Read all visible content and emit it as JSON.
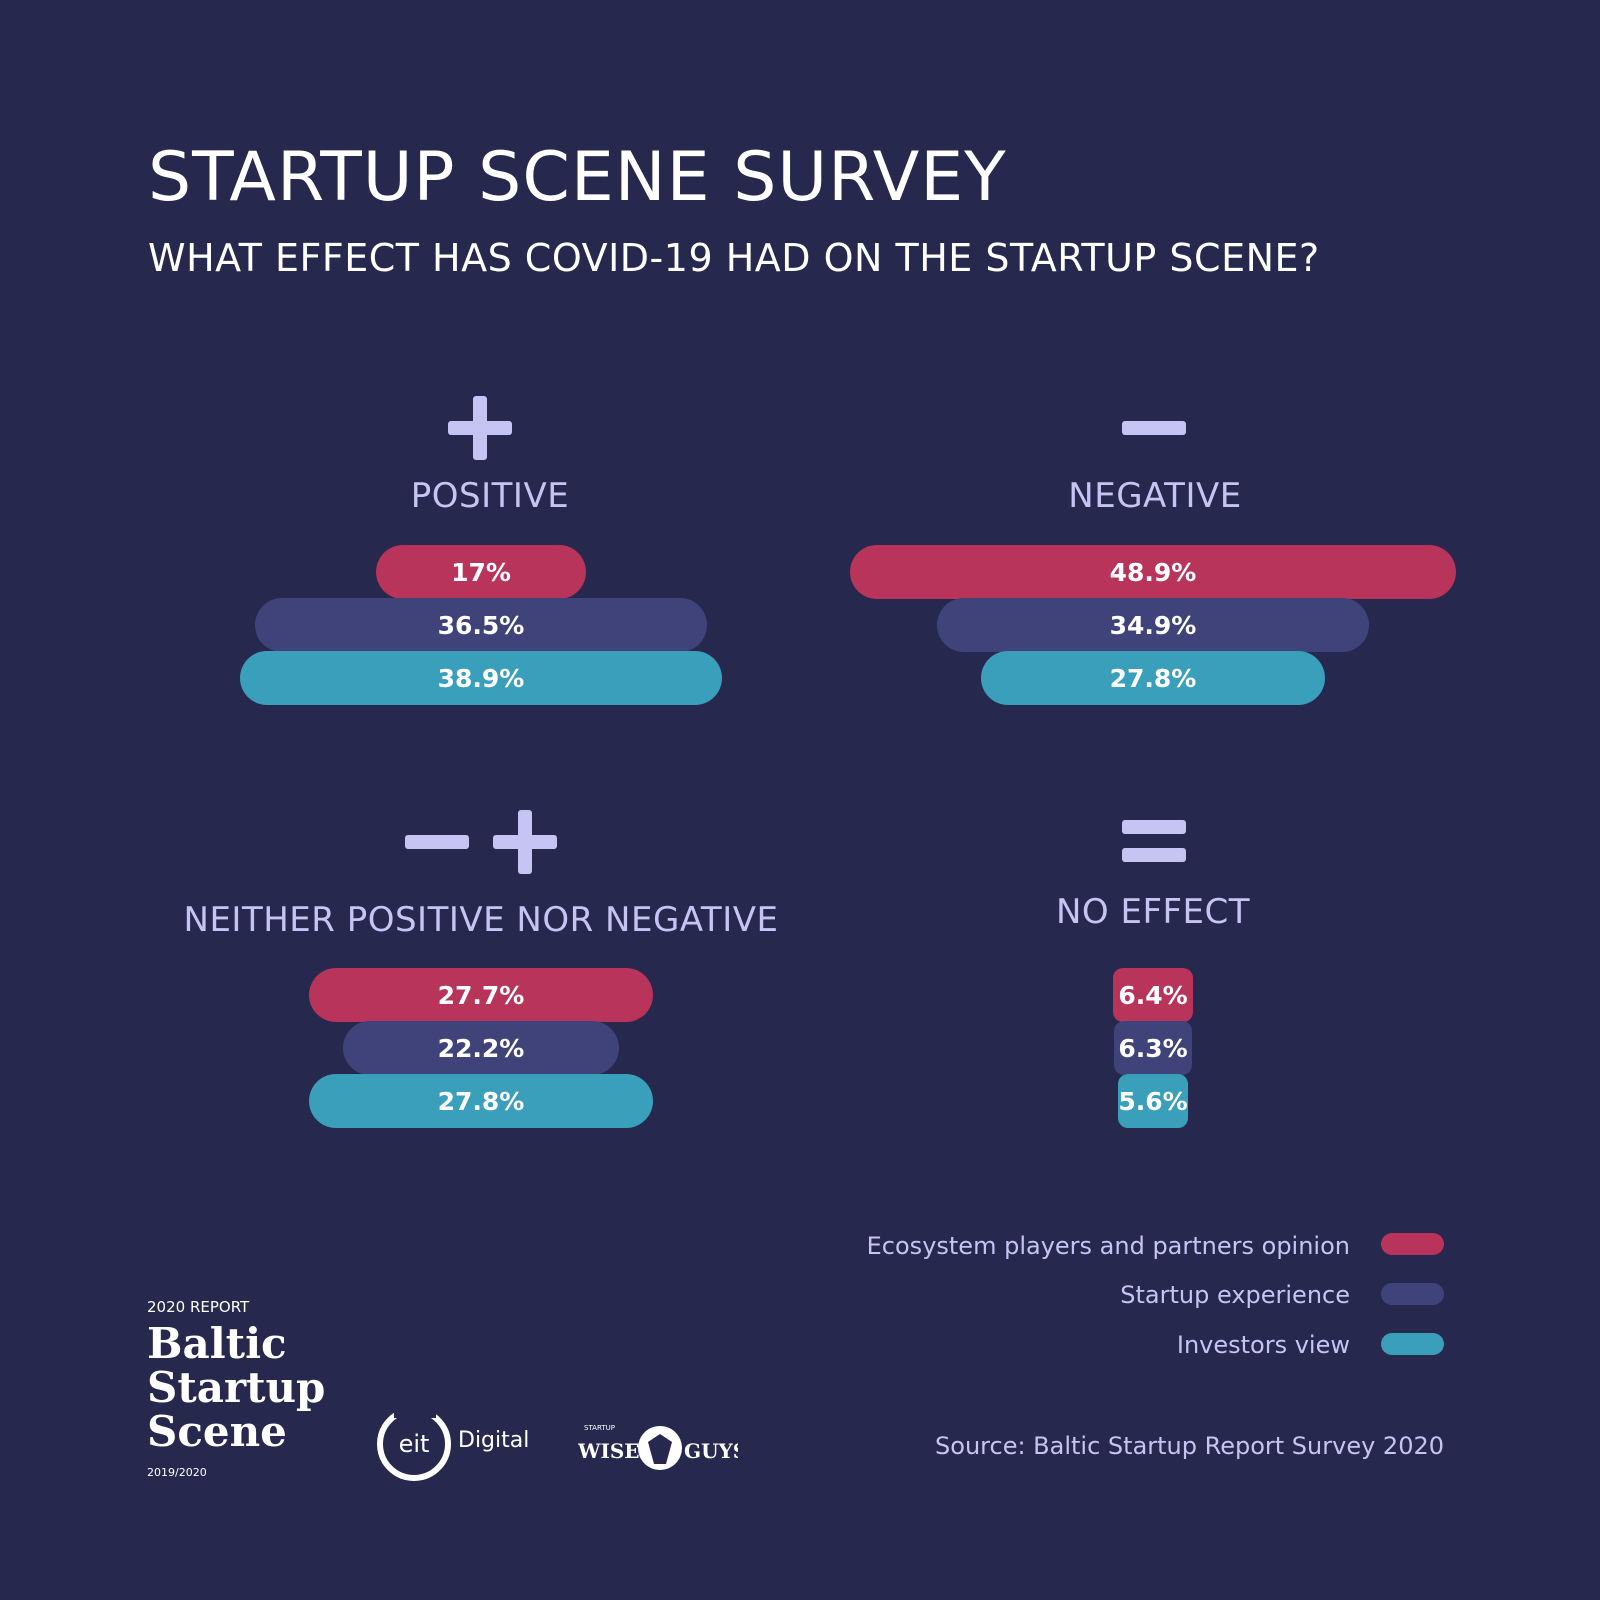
{
  "title": "STARTUP SCENE SURVEY",
  "subtitle": "WHAT EFFECT HAS COVID-19 HAD ON THE STARTUP SCENE?",
  "colors": {
    "background": "#26284e",
    "ecosystem": "#b8345a",
    "startup": "#3f437a",
    "investors": "#3a9fba",
    "label": "#c6c4f3"
  },
  "chart_data": {
    "type": "bar",
    "title": "WHAT EFFECT HAS COVID-19 HAD ON THE STARTUP SCENE?",
    "categories": [
      "POSITIVE",
      "NEGATIVE",
      "NEITHER POSITIVE NOR NEGATIVE",
      "NO EFFECT"
    ],
    "series": [
      {
        "name": "Ecosystem players and partners opinion",
        "values": [
          17,
          48.9,
          27.7,
          6.4
        ]
      },
      {
        "name": "Startup experience",
        "values": [
          36.5,
          34.9,
          22.2,
          6.3
        ]
      },
      {
        "name": "Investors view",
        "values": [
          38.9,
          27.8,
          27.8,
          5.6
        ]
      }
    ],
    "value_labels": [
      [
        "17%",
        "48.9%",
        "27.7%",
        "6.4%"
      ],
      [
        "36.5%",
        "34.9%",
        "22.2%",
        "6.3%"
      ],
      [
        "38.9%",
        "27.8%",
        "27.8%",
        "5.6%"
      ]
    ],
    "unit": "%",
    "legend_position": "bottom-right"
  },
  "panels": [
    {
      "label": "POSITIVE",
      "icon": "plus-icon"
    },
    {
      "label": "NEGATIVE",
      "icon": "minus-icon"
    },
    {
      "label": "NEITHER POSITIVE NOR NEGATIVE",
      "icon": "minus-plus-icon"
    },
    {
      "label": "NO EFFECT",
      "icon": "equals-icon"
    }
  ],
  "legend": [
    {
      "label": "Ecosystem players and partners opinion"
    },
    {
      "label": "Startup experience"
    },
    {
      "label": "Investors view"
    }
  ],
  "source": "Source: Baltic Startup Report Survey 2020",
  "branding": {
    "report_label": "2020 REPORT",
    "name_line1": "Baltic",
    "name_line2": "Startup",
    "name_line3": "Scene",
    "years": "2019/2020",
    "eit_text": "eit",
    "eit_word": "Digital",
    "wise_small": "STARTUP",
    "wise_left": "WISE",
    "wise_right": "GUYS"
  }
}
